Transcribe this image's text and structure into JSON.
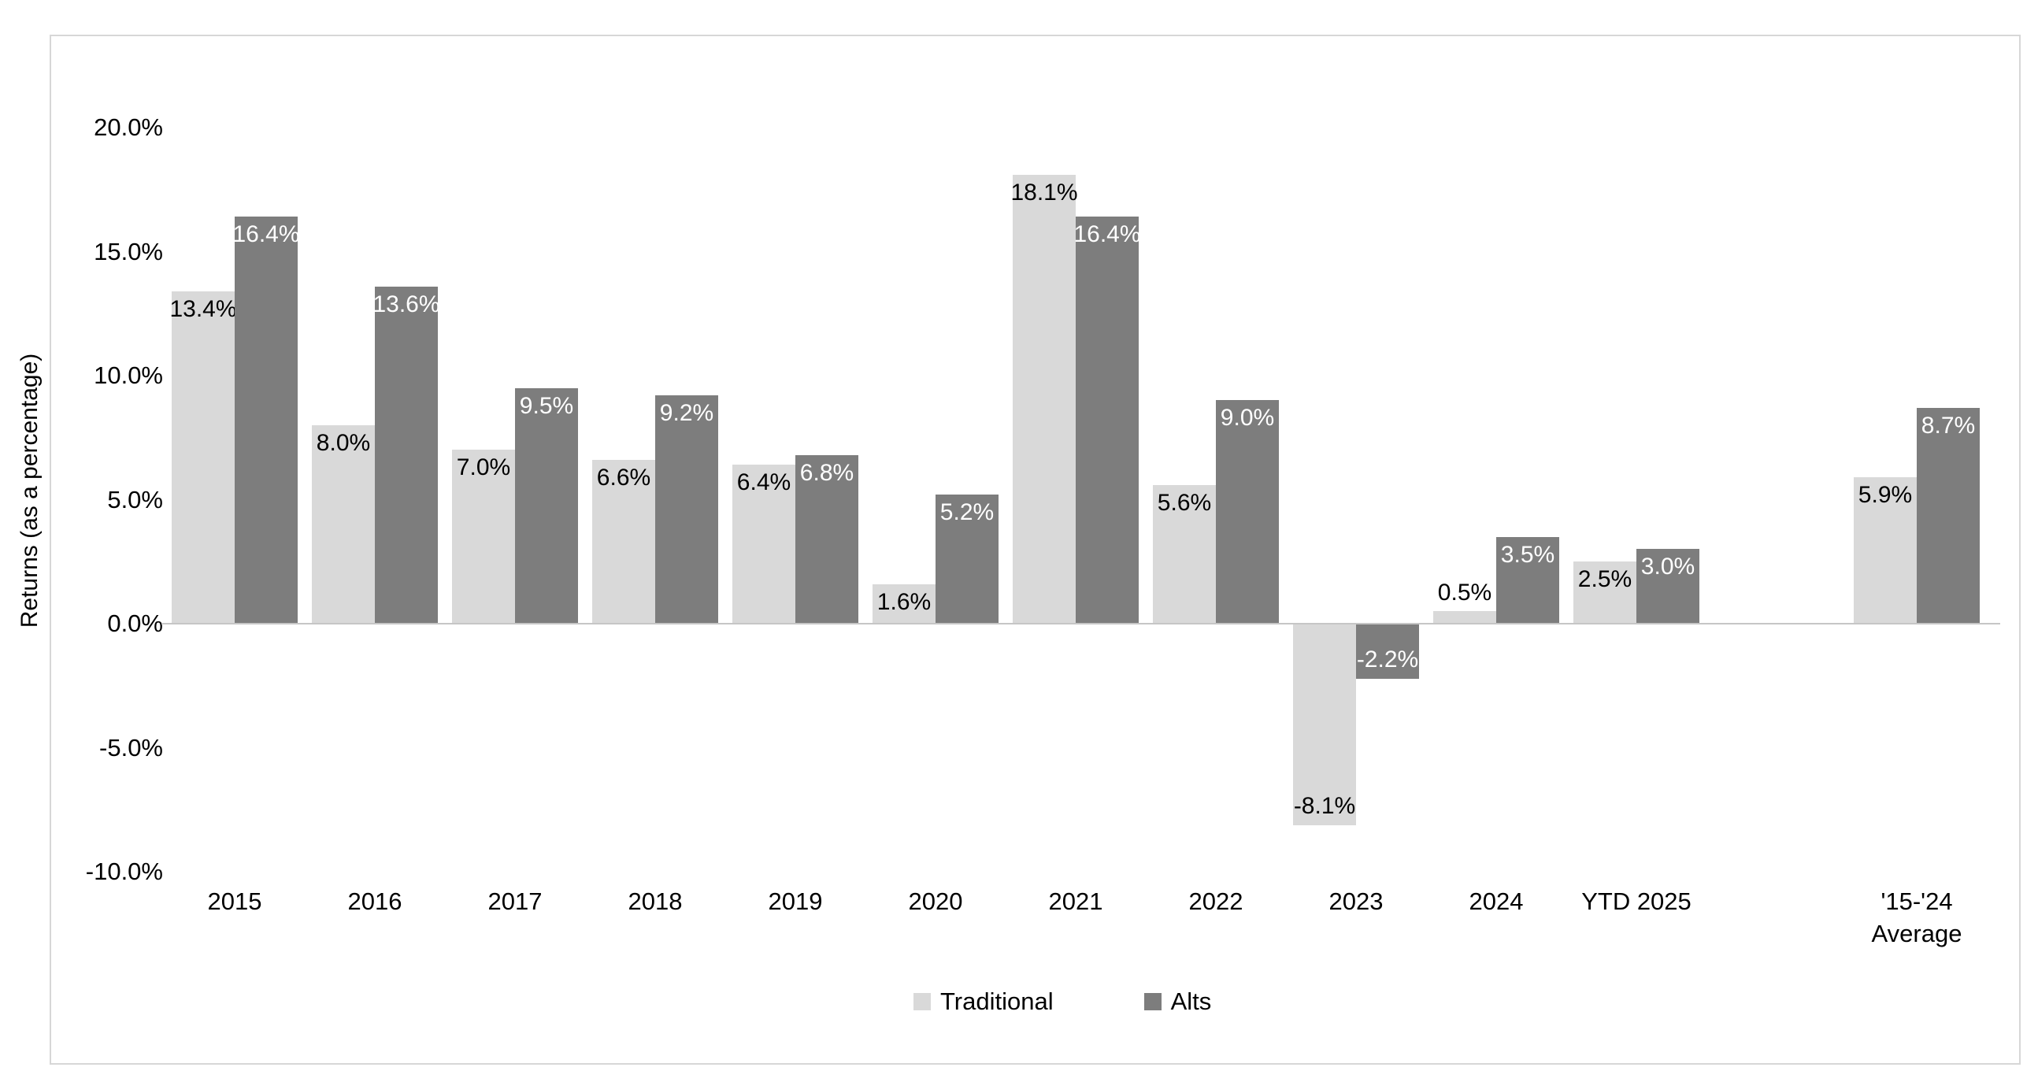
{
  "chart_data": {
    "type": "bar",
    "title": "",
    "ylabel": "Returns (as a percentage)",
    "xlabel": "",
    "ylim": [
      -10,
      20
    ],
    "grid": false,
    "legend_position": "bottom",
    "categories": [
      "2015",
      "2016",
      "2017",
      "2018",
      "2019",
      "2020",
      "2021",
      "2022",
      "2023",
      "2024",
      "YTD 2025",
      "'15-'24 Average"
    ],
    "gap_slot_before_category_index": 11,
    "yticks": [
      {
        "value": 20,
        "label": "20.0%"
      },
      {
        "value": 15,
        "label": "15.0%"
      },
      {
        "value": 10,
        "label": "10.0%"
      },
      {
        "value": 5,
        "label": "5.0%"
      },
      {
        "value": 0,
        "label": "0.0%"
      },
      {
        "value": -5,
        "label": "-5.0%"
      },
      {
        "value": -10,
        "label": "-10.0%"
      }
    ],
    "series": [
      {
        "name": "Traditional",
        "color": "#d9d9d9",
        "label_color": "#000000",
        "values": [
          13.4,
          8.0,
          7.0,
          6.6,
          6.4,
          1.6,
          18.1,
          5.6,
          -8.1,
          0.5,
          2.5,
          5.9
        ],
        "labels": [
          "13.4%",
          "8.0%",
          "7.0%",
          "6.6%",
          "6.4%",
          "1.6%",
          "18.1%",
          "5.6%",
          "-8.1%",
          "0.5%",
          "2.5%",
          "5.9%"
        ]
      },
      {
        "name": "Alts",
        "color": "#7d7d7d",
        "label_color": "#ffffff",
        "values": [
          16.4,
          13.6,
          9.5,
          9.2,
          6.8,
          5.2,
          16.4,
          9.0,
          -2.2,
          3.5,
          3.0,
          8.7
        ],
        "labels": [
          "16.4%",
          "13.6%",
          "9.5%",
          "9.2%",
          "6.8%",
          "5.2%",
          "16.4%",
          "9.0%",
          "-2.2%",
          "3.5%",
          "3.0%",
          "8.7%"
        ]
      }
    ],
    "colors": {
      "traditional": "#d9d9d9",
      "alts": "#7d7d7d",
      "axis_line": "#c6c6c6",
      "chart_border": "#d7d7d7",
      "tick_text": "#000000"
    }
  }
}
